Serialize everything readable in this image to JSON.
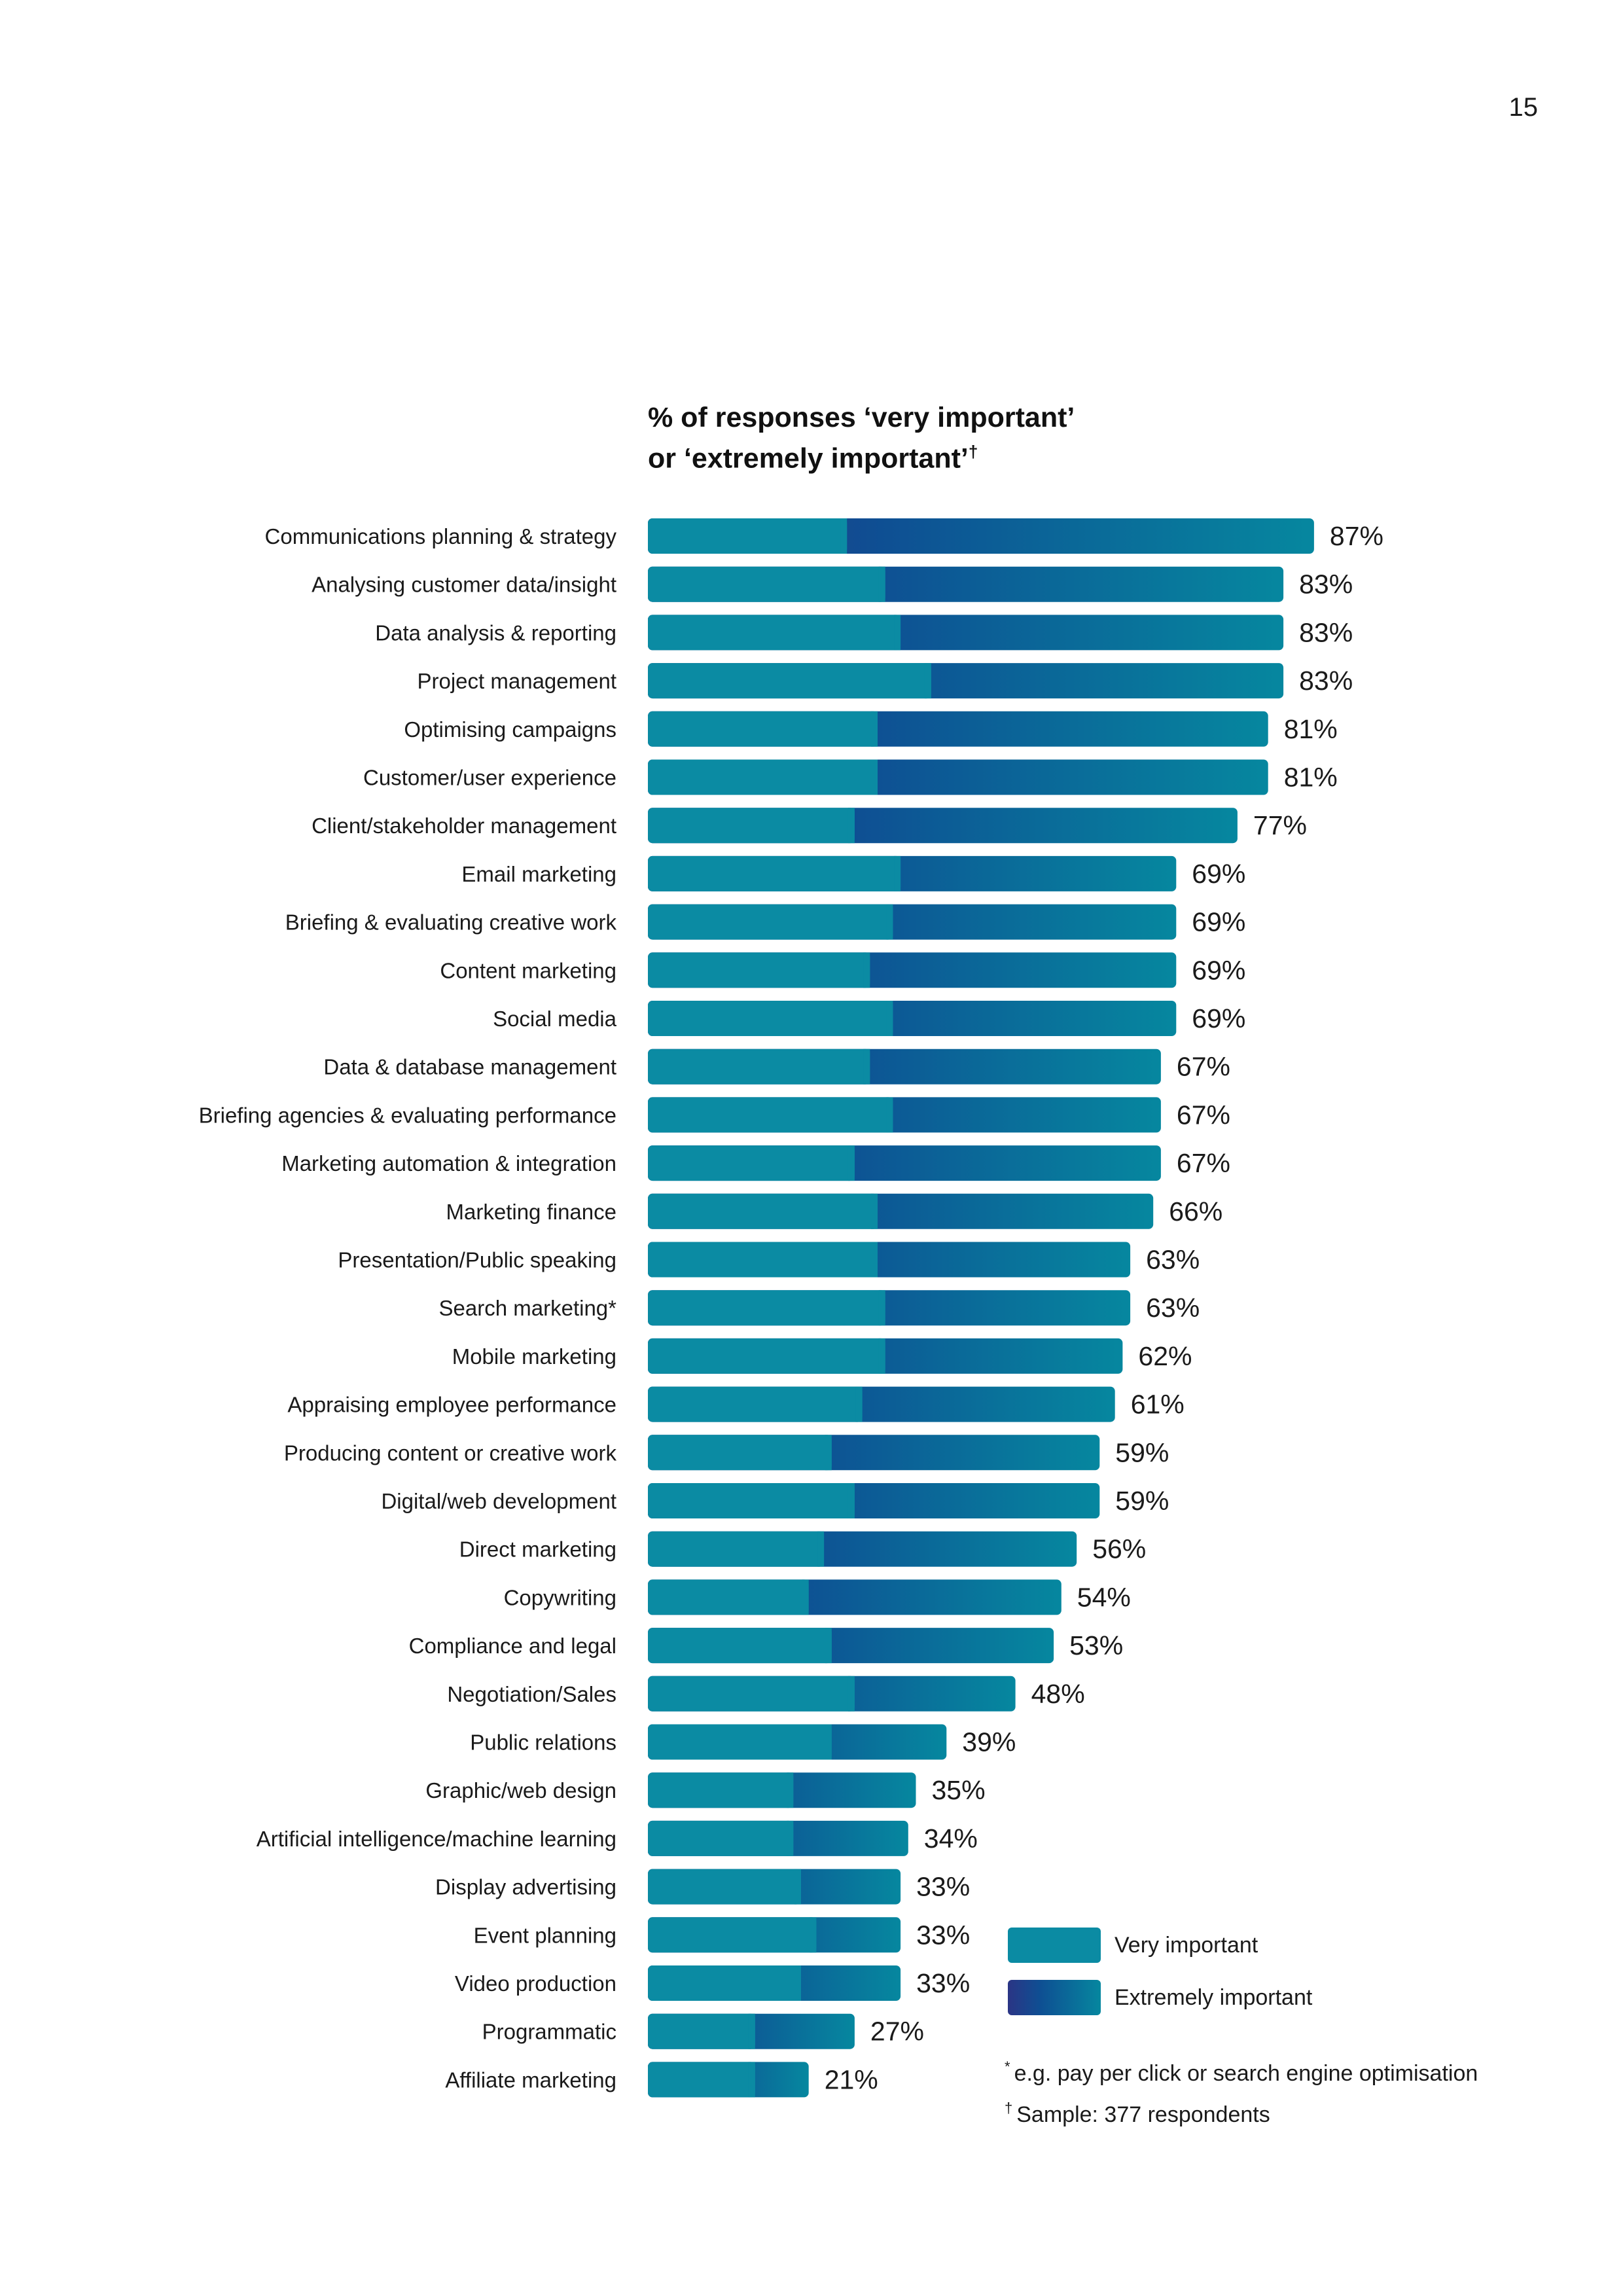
{
  "page_number": "15",
  "chart_data": {
    "type": "bar",
    "orientation": "horizontal",
    "stacked": true,
    "title_line1": "% of responses ‘very important’",
    "title_line2": "or ‘extremely important’",
    "title_mark": "†",
    "xlabel": "",
    "ylabel": "",
    "xlim": [
      0,
      100
    ],
    "grid": false,
    "legend_position": "bottom-right",
    "categories": [
      "Communications planning & strategy",
      "Analysing customer data/insight",
      "Data analysis & reporting",
      "Project management",
      "Optimising campaigns",
      "Customer/user experience",
      "Client/stakeholder management",
      "Email marketing",
      "Briefing & evaluating creative work",
      "Content marketing",
      "Social media",
      "Data & database management",
      "Briefing agencies & evaluating performance",
      "Marketing automation & integration",
      "Marketing finance",
      "Presentation/Public speaking",
      "Search marketing*",
      "Mobile marketing",
      "Appraising employee performance",
      "Producing content or creative work",
      "Digital/web development",
      "Direct marketing",
      "Copywriting",
      "Compliance and legal",
      "Negotiation/Sales",
      "Public relations",
      "Graphic/web design",
      "Artificial intelligence/machine learning",
      "Display advertising",
      "Event planning",
      "Video production",
      "Programmatic",
      "Affiliate marketing"
    ],
    "series": [
      {
        "name": "Very important",
        "values": [
          26,
          31,
          33,
          37,
          30,
          30,
          27,
          33,
          32,
          29,
          32,
          29,
          32,
          27,
          30,
          30,
          31,
          31,
          28,
          24,
          27,
          23,
          21,
          24,
          27,
          24,
          19,
          19,
          20,
          22,
          20,
          14,
          14
        ]
      },
      {
        "name": "Extremely important",
        "values": [
          61,
          52,
          50,
          46,
          51,
          51,
          50,
          36,
          37,
          40,
          37,
          38,
          35,
          40,
          36,
          33,
          32,
          31,
          33,
          35,
          32,
          33,
          33,
          29,
          21,
          15,
          16,
          15,
          13,
          11,
          13,
          13,
          7
        ]
      }
    ],
    "total_labels": [
      "87%",
      "83%",
      "83%",
      "83%",
      "81%",
      "81%",
      "77%",
      "69%",
      "69%",
      "69%",
      "69%",
      "67%",
      "67%",
      "67%",
      "66%",
      "63%",
      "63%",
      "62%",
      "61%",
      "59%",
      "59%",
      "56%",
      "54%",
      "53%",
      "48%",
      "39%",
      "35%",
      "34%",
      "33%",
      "33%",
      "33%",
      "27%",
      "21%"
    ],
    "colors": {
      "very_important": "#0b8ba3",
      "extremely_important_start": "#2b3585",
      "extremely_important_end": "#06879f"
    }
  },
  "legend": {
    "very_important": "Very important",
    "extremely_important": "Extremely important"
  },
  "notes": {
    "footnote_mark": "*",
    "footnote": "e.g. pay per click or search engine optimisation",
    "sample_mark": "†",
    "sample": "Sample: 377 respondents"
  }
}
